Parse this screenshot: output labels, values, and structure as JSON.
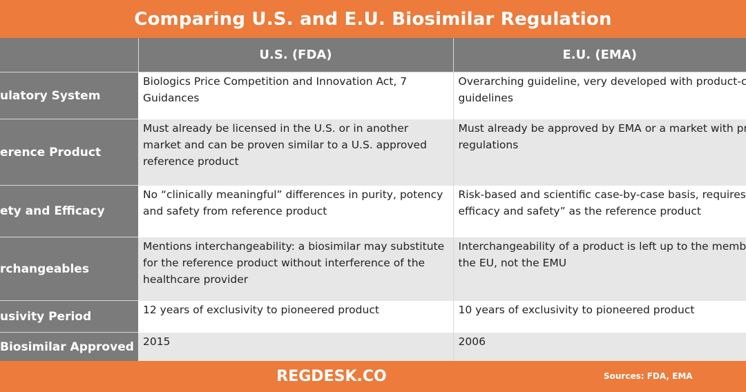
{
  "title": "Comparing U.S. and E.U. Biosimilar Regulation",
  "table": {
    "headers": [
      "",
      "U.S. (FDA)",
      "E.U. (EMA)"
    ],
    "rows": [
      {
        "label": "ulatory  System",
        "fda": "Biologics Price Competition and Innovation Act, 7 Guidances",
        "ema": "Overarching guideline, very developed with product-class specific guidelines"
      },
      {
        "label": "erence Product",
        "fda": "Must already be licensed in the U.S. or in another market and can be proven similar to a U.S. approved reference product",
        "ema": "Must already be approved by EMA or a market with proven similar regulations"
      },
      {
        "label": "ety and  Efficacy",
        "fda": "No “clinically meaningful” differences in purity, potency and safety from reference product",
        "ema": "Risk-based and scientific case-by-case basis, requires “similar efficacy and safety” as the reference product"
      },
      {
        "label": "rchangeables",
        "fda": "Mentions interchangeability: a biosimilar may substitute for the reference product without interference of the healthcare provider",
        "ema": "Interchangeability of a product is left up to the member states of the EU, not the EMU"
      },
      {
        "label": "usivity  Period",
        "fda": "12 years of exclusivity to pioneered product",
        "ema": "10 years of exclusivity to pioneered product"
      },
      {
        "label": "Biosimilar  Approved",
        "fda": "2015",
        "ema": "2006"
      }
    ]
  },
  "footer": {
    "brand": "REGDESK.CO",
    "sources": "Sources: FDA, EMA"
  },
  "colors": {
    "accent_orange": "#ec7b3c",
    "header_gray": "#7b7b7b",
    "row_alt": "#e7e7e7"
  }
}
